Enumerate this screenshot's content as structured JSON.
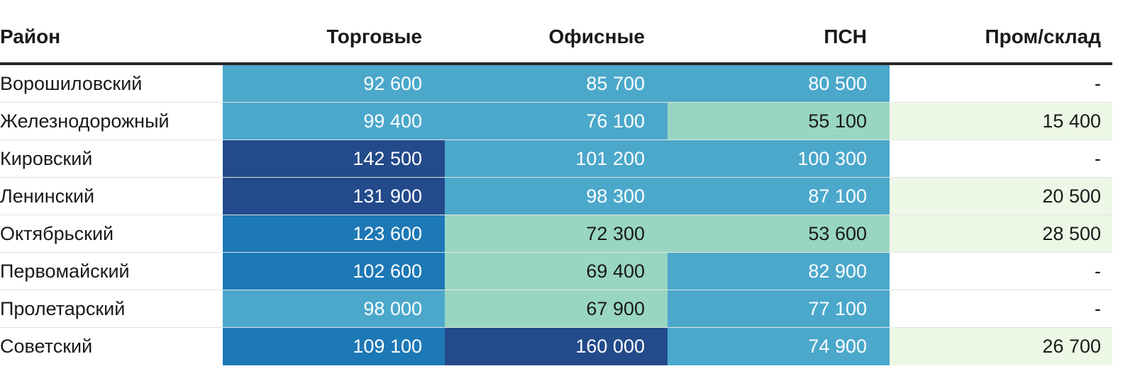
{
  "chart_data": {
    "type": "table",
    "columns": [
      "Район",
      "Торговые",
      "Офисные",
      "ПСН",
      "Пром/склад"
    ],
    "rows": [
      {
        "district": "Ворошиловский",
        "values": [
          92600,
          85700,
          80500,
          null
        ],
        "labels": [
          "92 600",
          "85 700",
          "80 500",
          "-"
        ]
      },
      {
        "district": "Железнодорожный",
        "values": [
          99400,
          76100,
          55100,
          15400
        ],
        "labels": [
          "99 400",
          "76 100",
          "55 100",
          "15 400"
        ]
      },
      {
        "district": "Кировский",
        "values": [
          142500,
          101200,
          100300,
          null
        ],
        "labels": [
          "142 500",
          "101 200",
          "100 300",
          "-"
        ]
      },
      {
        "district": "Ленинский",
        "values": [
          131900,
          98300,
          87100,
          20500
        ],
        "labels": [
          "131 900",
          "98 300",
          "87 100",
          "20 500"
        ]
      },
      {
        "district": "Октябрьский",
        "values": [
          123600,
          72300,
          53600,
          28500
        ],
        "labels": [
          "123 600",
          "72 300",
          "53 600",
          "28 500"
        ]
      },
      {
        "district": "Первомайский",
        "values": [
          102600,
          69400,
          82900,
          null
        ],
        "labels": [
          "102 600",
          "69 400",
          "82 900",
          "-"
        ]
      },
      {
        "district": "Пролетарский",
        "values": [
          98000,
          67900,
          77100,
          null
        ],
        "labels": [
          "98 000",
          "67 900",
          "77 100",
          "-"
        ]
      },
      {
        "district": "Советский",
        "values": [
          109100,
          160000,
          74900,
          26700
        ],
        "labels": [
          "109 100",
          "160 000",
          "74 900",
          "26 700"
        ]
      }
    ],
    "color_scale": {
      "empty": "#ffffff",
      "very_low": "#edf7e6",
      "low": "#98d6c1",
      "mid": "#4ba8cb",
      "high": "#1d78b6",
      "very_high": "#234a8a"
    },
    "text_colors": {
      "dark": "#1a1a1a",
      "light": "#ffffff"
    }
  }
}
